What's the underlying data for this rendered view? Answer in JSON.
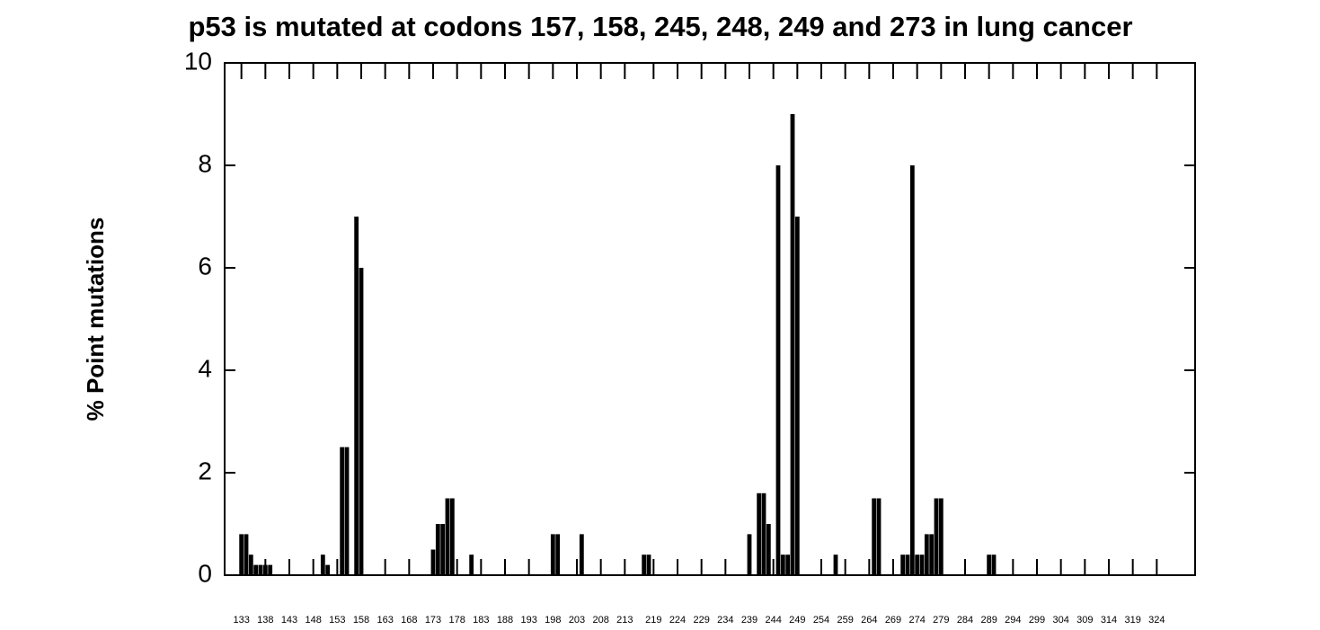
{
  "chart_data": {
    "type": "bar",
    "title": "p53 is mutated at codons 157, 158, 245, 248, 249 and 273 in lung cancer",
    "y_label": "% Point mutations",
    "x": [
      133,
      134,
      135,
      136,
      137,
      138,
      139,
      150,
      151,
      154,
      155,
      157,
      158,
      173,
      174,
      175,
      176,
      177,
      181,
      198,
      199,
      204,
      217,
      218,
      239,
      241,
      242,
      243,
      245,
      246,
      247,
      248,
      249,
      257,
      265,
      266,
      271,
      272,
      273,
      274,
      275,
      276,
      277,
      278,
      279,
      289,
      290
    ],
    "values": [
      0.8,
      0.8,
      0.4,
      0.2,
      0.2,
      0.2,
      0.2,
      0.4,
      0.2,
      2.5,
      2.5,
      7,
      6,
      0.5,
      1.0,
      1.0,
      1.5,
      1.5,
      0.4,
      0.8,
      0.8,
      0.8,
      0.4,
      0.4,
      0.8,
      1.6,
      1.6,
      1.0,
      8,
      0.4,
      0.4,
      9,
      7,
      0.4,
      1.5,
      1.5,
      0.4,
      0.4,
      8,
      0.4,
      0.4,
      0.8,
      0.8,
      1.5,
      1.5,
      0.4,
      0.4
    ],
    "color": "#000000",
    "xlim": [
      129.5,
      332
    ],
    "xticks": [
      133,
      138,
      143,
      148,
      153,
      158,
      163,
      168,
      173,
      178,
      183,
      188,
      193,
      198,
      203,
      208,
      213,
      219,
      224,
      229,
      234,
      239,
      244,
      249,
      254,
      259,
      264,
      269,
      274,
      279,
      284,
      289,
      294,
      299,
      304,
      309,
      314,
      319,
      324
    ],
    "ylim": [
      0,
      10
    ],
    "yticks": [
      0,
      2,
      4,
      6,
      8,
      10
    ]
  }
}
